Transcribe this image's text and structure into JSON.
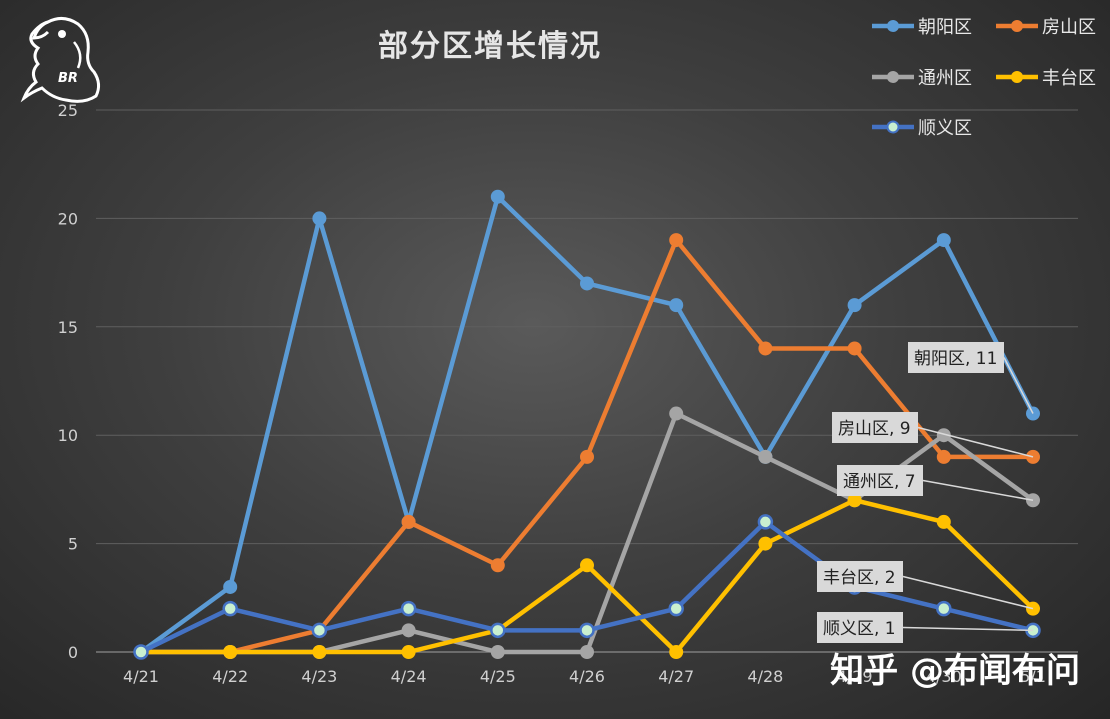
{
  "chart_data": {
    "type": "line",
    "title": "部分区增长情况",
    "xlabel": "",
    "ylabel": "",
    "ylim": [
      0,
      25
    ],
    "yticks": [
      0,
      5,
      10,
      15,
      20,
      25
    ],
    "categories": [
      "4/21",
      "4/22",
      "4/23",
      "4/24",
      "4/25",
      "4/26",
      "4/27",
      "4/28",
      "4/29",
      "4/30",
      "5/1"
    ],
    "grid": true,
    "legend_position": "top-right",
    "series": [
      {
        "name": "朝阳区",
        "color": "#5b9bd5",
        "marker": "filled",
        "values": [
          0,
          3,
          20,
          6,
          21,
          17,
          16,
          9,
          16,
          19,
          11
        ]
      },
      {
        "name": "房山区",
        "color": "#ed7d31",
        "marker": "filled",
        "values": [
          0,
          0,
          1,
          6,
          4,
          9,
          19,
          14,
          14,
          9,
          9
        ]
      },
      {
        "name": "通州区",
        "color": "#a5a5a5",
        "marker": "filled",
        "values": [
          0,
          0,
          0,
          1,
          0,
          0,
          11,
          9,
          7,
          10,
          7
        ]
      },
      {
        "name": "丰台区",
        "color": "#ffc000",
        "marker": "filled",
        "values": [
          0,
          0,
          0,
          0,
          1,
          4,
          0,
          5,
          7,
          6,
          2
        ]
      },
      {
        "name": "顺义区",
        "color": "#4472c4",
        "marker": "hollow",
        "values": [
          0,
          2,
          1,
          2,
          1,
          1,
          2,
          6,
          3,
          2,
          1
        ]
      }
    ],
    "data_labels": [
      {
        "text": "朝阳区, 11",
        "series": "朝阳区"
      },
      {
        "text": "房山区, 9",
        "series": "房山区"
      },
      {
        "text": "通州区, 7",
        "series": "通州区"
      },
      {
        "text": "丰台区, 2",
        "series": "丰台区"
      },
      {
        "text": "顺义区, 1",
        "series": "顺义区"
      }
    ]
  },
  "logo": {
    "text": "BR",
    "icon": "parrot-logo-icon"
  },
  "watermark": "知乎 @布闻布问"
}
